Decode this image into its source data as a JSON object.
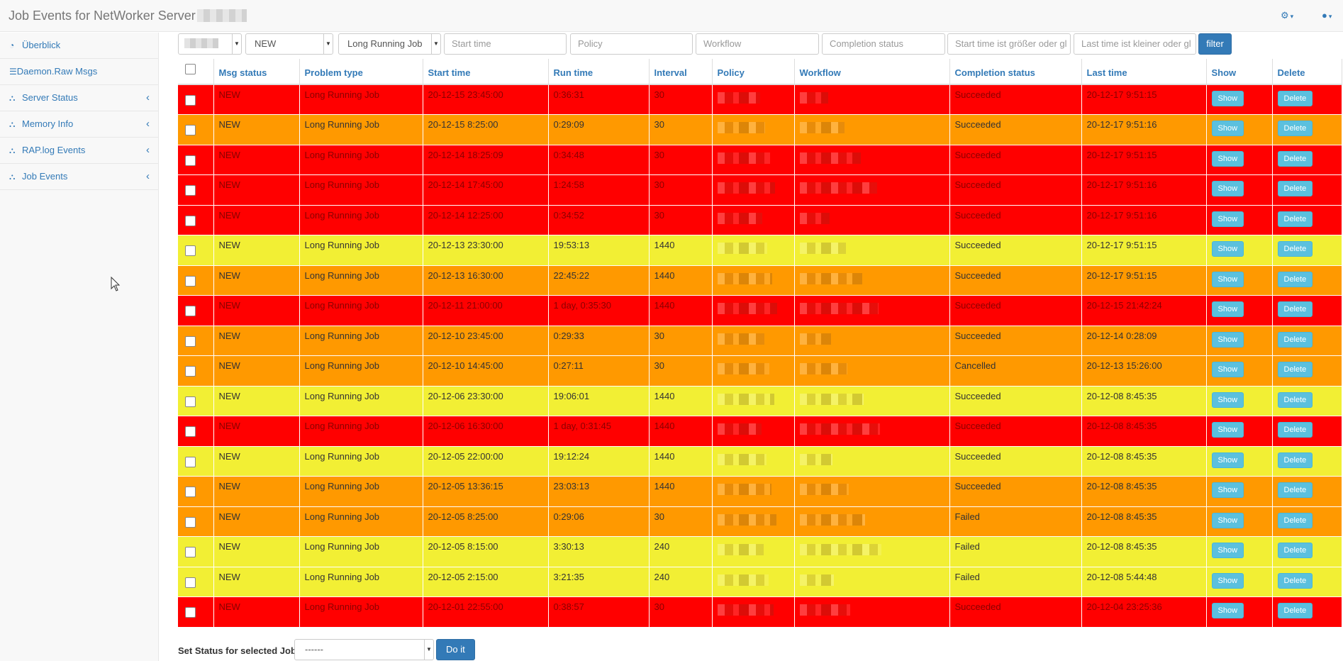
{
  "header": {
    "title": "Job Events for NetWorker Server",
    "tools_icon": "cogs-icon",
    "user_icon": "user-icon"
  },
  "sidebar": {
    "items": [
      {
        "label": "Überblick",
        "icon": "dashboard-icon",
        "has_chevron": false
      },
      {
        "label": "Daemon.Raw Msgs",
        "icon": "list-icon",
        "has_chevron": false
      },
      {
        "label": "Server Status",
        "icon": "sitemap-icon",
        "has_chevron": true
      },
      {
        "label": "Memory Info",
        "icon": "sitemap-icon",
        "has_chevron": true
      },
      {
        "label": "RAP.log Events",
        "icon": "sitemap-icon",
        "has_chevron": true
      },
      {
        "label": "Job Events",
        "icon": "sitemap-icon",
        "has_chevron": true
      }
    ]
  },
  "filters": {
    "status_select": "NEW",
    "problem_select": "Long Running Job",
    "start_time_placeholder": "Start time",
    "policy_placeholder": "Policy",
    "workflow_placeholder": "Workflow",
    "completion_placeholder": "Completion status",
    "start_gt_placeholder": "Start time ist größer oder gl",
    "last_lt_placeholder": "Last time ist kleiner oder gl",
    "filter_label": "filter"
  },
  "table": {
    "headers": {
      "msg_status": "Msg status",
      "problem_type": "Problem type",
      "start_time": "Start time",
      "run_time": "Run time",
      "interval": "Interval",
      "policy": "Policy",
      "workflow": "Workflow",
      "completion_status": "Completion status",
      "last_time": "Last time",
      "show": "Show",
      "delete": "Delete"
    },
    "rows": [
      {
        "color": "red",
        "status": "NEW",
        "problem": "Long Running Job",
        "start": "20-12-15 23:45:00",
        "run": "0:36:31",
        "interval": "30",
        "completion": "Succeeded",
        "last": "20-12-17 9:51:15"
      },
      {
        "color": "orange",
        "status": "NEW",
        "problem": "Long Running Job",
        "start": "20-12-15 8:25:00",
        "run": "0:29:09",
        "interval": "30",
        "completion": "Succeeded",
        "last": "20-12-17 9:51:16"
      },
      {
        "color": "red",
        "status": "NEW",
        "problem": "Long Running Job",
        "start": "20-12-14 18:25:09",
        "run": "0:34:48",
        "interval": "30",
        "completion": "Succeeded",
        "last": "20-12-17 9:51:15"
      },
      {
        "color": "red",
        "status": "NEW",
        "problem": "Long Running Job",
        "start": "20-12-14 17:45:00",
        "run": "1:24:58",
        "interval": "30",
        "completion": "Succeeded",
        "last": "20-12-17 9:51:16"
      },
      {
        "color": "red",
        "status": "NEW",
        "problem": "Long Running Job",
        "start": "20-12-14 12:25:00",
        "run": "0:34:52",
        "interval": "30",
        "completion": "Succeeded",
        "last": "20-12-17 9:51:16"
      },
      {
        "color": "yellow",
        "status": "NEW",
        "problem": "Long Running Job",
        "start": "20-12-13 23:30:00",
        "run": "19:53:13",
        "interval": "1440",
        "completion": "Succeeded",
        "last": "20-12-17 9:51:15"
      },
      {
        "color": "orange",
        "status": "NEW",
        "problem": "Long Running Job",
        "start": "20-12-13 16:30:00",
        "run": "22:45:22",
        "interval": "1440",
        "completion": "Succeeded",
        "last": "20-12-17 9:51:15"
      },
      {
        "color": "red",
        "status": "NEW",
        "problem": "Long Running Job",
        "start": "20-12-11 21:00:00",
        "run": "1 day, 0:35:30",
        "interval": "1440",
        "completion": "Succeeded",
        "last": "20-12-15 21:42:24"
      },
      {
        "color": "orange",
        "status": "NEW",
        "problem": "Long Running Job",
        "start": "20-12-10 23:45:00",
        "run": "0:29:33",
        "interval": "30",
        "completion": "Succeeded",
        "last": "20-12-14 0:28:09"
      },
      {
        "color": "orange",
        "status": "NEW",
        "problem": "Long Running Job",
        "start": "20-12-10 14:45:00",
        "run": "0:27:11",
        "interval": "30",
        "completion": "Cancelled",
        "last": "20-12-13 15:26:00"
      },
      {
        "color": "yellow",
        "status": "NEW",
        "problem": "Long Running Job",
        "start": "20-12-06 23:30:00",
        "run": "19:06:01",
        "interval": "1440",
        "completion": "Succeeded",
        "last": "20-12-08 8:45:35"
      },
      {
        "color": "red",
        "status": "NEW",
        "problem": "Long Running Job",
        "start": "20-12-06 16:30:00",
        "run": "1 day, 0:31:45",
        "interval": "1440",
        "completion": "Succeeded",
        "last": "20-12-08 8:45:35"
      },
      {
        "color": "yellow",
        "status": "NEW",
        "problem": "Long Running Job",
        "start": "20-12-05 22:00:00",
        "run": "19:12:24",
        "interval": "1440",
        "completion": "Succeeded",
        "last": "20-12-08 8:45:35"
      },
      {
        "color": "orange",
        "status": "NEW",
        "problem": "Long Running Job",
        "start": "20-12-05 13:36:15",
        "run": "23:03:13",
        "interval": "1440",
        "completion": "Succeeded",
        "last": "20-12-08 8:45:35"
      },
      {
        "color": "orange",
        "status": "NEW",
        "problem": "Long Running Job",
        "start": "20-12-05 8:25:00",
        "run": "0:29:06",
        "interval": "30",
        "completion": "Failed",
        "last": "20-12-08 8:45:35"
      },
      {
        "color": "yellow",
        "status": "NEW",
        "problem": "Long Running Job",
        "start": "20-12-05 8:15:00",
        "run": "3:30:13",
        "interval": "240",
        "completion": "Failed",
        "last": "20-12-08 8:45:35"
      },
      {
        "color": "yellow",
        "status": "NEW",
        "problem": "Long Running Job",
        "start": "20-12-05 2:15:00",
        "run": "3:21:35",
        "interval": "240",
        "completion": "Failed",
        "last": "20-12-08 5:44:48"
      },
      {
        "color": "red",
        "status": "NEW",
        "problem": "Long Running Job",
        "start": "20-12-01 22:55:00",
        "run": "0:38:57",
        "interval": "30",
        "completion": "Succeeded",
        "last": "20-12-04 23:25:36"
      }
    ],
    "show_label": "Show",
    "delete_label": "Delete"
  },
  "bottom": {
    "label": "Set Status for selected Job",
    "select_value": "------",
    "button_label": "Do it"
  },
  "colors": {
    "red": "#ff0000",
    "orange": "#ff9900",
    "yellow": "#f2ef34",
    "link": "#337ab7",
    "primary_button": "#337ab7",
    "info_button": "#5bc0de"
  }
}
